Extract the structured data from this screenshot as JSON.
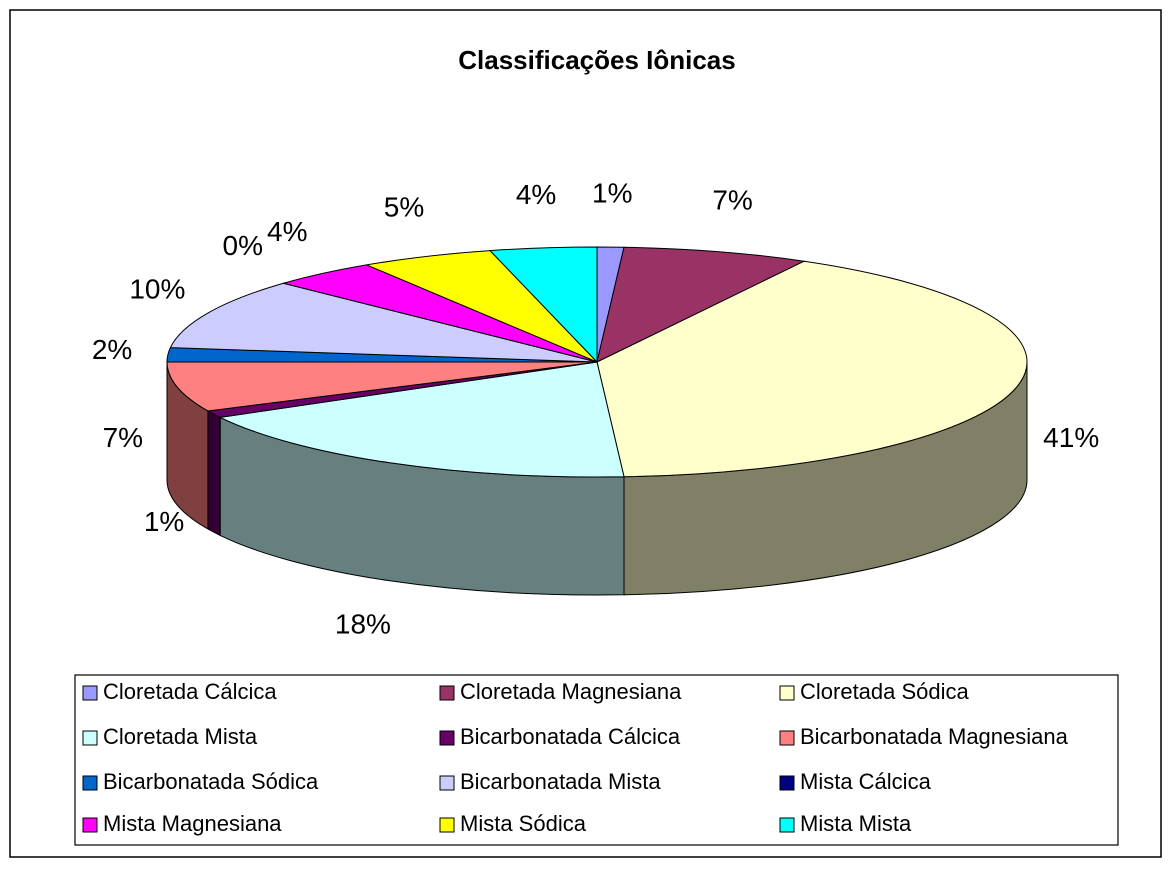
{
  "chart_data": {
    "type": "pie3d",
    "title": "Classificações Iônicas",
    "categories": [
      "Cloretada Cálcica",
      "Cloretada Magnesiana",
      "Cloretada Sódica",
      "Cloretada Mista",
      "Bicarbonatada Cálcica",
      "Bicarbonatada Magnesiana",
      "Bicarbonatada Sódica",
      "Bicarbonatada Mista",
      "Mista Cálcica",
      "Mista Magnesiana",
      "Mista Sódica",
      "Mista Mista"
    ],
    "values": [
      1,
      7,
      41,
      18,
      1,
      7,
      2,
      10,
      0,
      4,
      5,
      4
    ],
    "value_labels": [
      "1%",
      "7%",
      "41%",
      "18%",
      "1%",
      "7%",
      "2%",
      "10%",
      "0%",
      "4%",
      "5%",
      "4%"
    ],
    "colors": [
      "#9999ff",
      "#993366",
      "#ffffcc",
      "#ccffff",
      "#660066",
      "#ff8080",
      "#0066cc",
      "#ccccff",
      "#000080",
      "#ff00ff",
      "#ffff00",
      "#00ffff"
    ],
    "legend": "bottom"
  }
}
